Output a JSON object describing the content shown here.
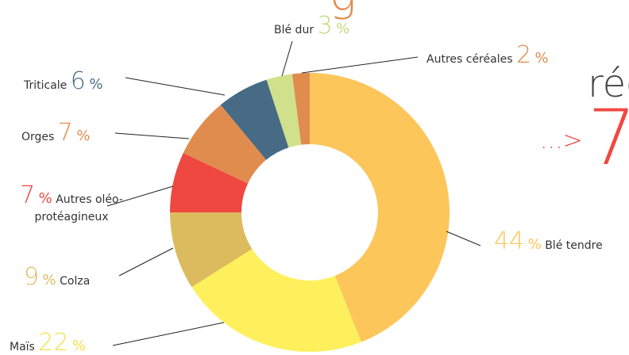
{
  "chart_data": {
    "type": "donut",
    "categories": [
      "Blé tendre",
      "Maïs",
      "Colza",
      "Autres oléo-protéagineux",
      "Orges",
      "Triticale",
      "Blé dur",
      "Autres céréales"
    ],
    "values": [
      44,
      22,
      9,
      7,
      7,
      6,
      3,
      2
    ],
    "unit": "%",
    "colors": [
      "#fdc65a",
      "#fef05d",
      "#dcbb5e",
      "#ef4840",
      "#e08c4f",
      "#476b85",
      "#d1e08a",
      "#e08c4f"
    ],
    "label_colors": [
      "#fdc65a",
      "#f5e04a",
      "#dcbb5e",
      "#ef4840",
      "#e08c4f",
      "#476b85",
      "#c5d87a",
      "#e08c4f"
    ],
    "annotations": [
      "g",
      "réc",
      "...>",
      "7"
    ]
  }
}
